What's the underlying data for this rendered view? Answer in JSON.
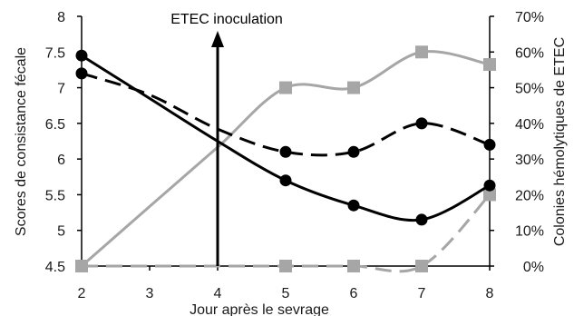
{
  "chart_data": {
    "type": "line",
    "xlabel": "Jour après le sevrage",
    "ylabel_left": "Scores de consistance fécale",
    "ylabel_right": "Colonies hémolytiques de ETEC",
    "x_ticks": [
      "2",
      "3",
      "4",
      "5",
      "6",
      "7",
      "8"
    ],
    "y_left_ticks": [
      "4.5",
      "5",
      "5.5",
      "6",
      "6.5",
      "7",
      "7.5",
      "8"
    ],
    "y_right_ticks": [
      "0%",
      "10%",
      "20%",
      "30%",
      "40%",
      "50%",
      "60%",
      "70%"
    ],
    "xlim": [
      2,
      8
    ],
    "ylim_left": [
      4.5,
      8
    ],
    "ylim_right": [
      0,
      70
    ],
    "annotation": {
      "text": "ETEC inoculation",
      "x": 4
    },
    "colors": {
      "black": "#000000",
      "gray": "#a6a6a6"
    },
    "series": [
      {
        "axis": "left",
        "style": "solid",
        "color": "#000000",
        "marker": "circle",
        "points": [
          [
            2,
            7.45
          ],
          [
            5,
            5.7
          ],
          [
            6,
            5.35
          ],
          [
            7,
            5.15
          ],
          [
            8,
            5.63
          ]
        ],
        "line": [
          [
            2,
            7.45
          ],
          [
            3,
            6.85
          ],
          [
            4,
            6.25
          ],
          [
            5,
            5.7
          ],
          [
            6,
            5.35
          ],
          [
            7,
            5.15
          ],
          [
            8,
            5.63
          ]
        ]
      },
      {
        "axis": "left",
        "style": "dashed",
        "color": "#000000",
        "marker": "circle",
        "points": [
          [
            2,
            7.2
          ],
          [
            5,
            6.1
          ],
          [
            6,
            6.1
          ],
          [
            7,
            6.5
          ],
          [
            8,
            6.2
          ]
        ],
        "line": [
          [
            2,
            7.2
          ],
          [
            3,
            6.9
          ],
          [
            4,
            6.42
          ],
          [
            5,
            6.1
          ],
          [
            6,
            6.1
          ],
          [
            7,
            6.5
          ],
          [
            8,
            6.2
          ]
        ]
      },
      {
        "axis": "right",
        "style": "solid",
        "color": "#a6a6a6",
        "marker": "square",
        "points": [
          [
            2,
            0
          ],
          [
            5,
            50
          ],
          [
            6,
            50
          ],
          [
            7,
            60
          ],
          [
            8,
            56.5
          ]
        ],
        "line": [
          [
            2,
            0
          ],
          [
            3,
            16.7
          ],
          [
            4,
            33.3
          ],
          [
            5,
            50
          ],
          [
            6,
            50
          ],
          [
            7,
            60
          ],
          [
            8,
            56.5
          ]
        ]
      },
      {
        "axis": "right",
        "style": "dashed",
        "color": "#a6a6a6",
        "marker": "square",
        "points": [
          [
            2,
            0
          ],
          [
            5,
            0
          ],
          [
            6,
            0
          ],
          [
            7,
            0
          ],
          [
            8,
            20
          ]
        ],
        "line": [
          [
            2,
            0
          ],
          [
            3,
            0
          ],
          [
            4,
            0
          ],
          [
            5,
            0
          ],
          [
            6,
            0
          ],
          [
            7,
            0
          ],
          [
            8,
            20
          ]
        ]
      }
    ]
  }
}
